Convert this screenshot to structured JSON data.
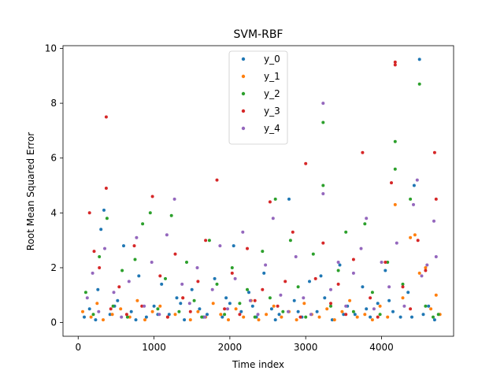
{
  "chart_data": {
    "type": "scatter",
    "title": "SVM-RBF",
    "xlabel": "Time index",
    "ylabel": "Root Mean Squared Error",
    "xlim": [
      -200,
      4950
    ],
    "ylim": [
      -0.5,
      10.1
    ],
    "xticks": [
      0,
      1000,
      2000,
      3000,
      4000
    ],
    "yticks": [
      0,
      2,
      4,
      6,
      8,
      10
    ],
    "legend_loc": "upper center",
    "grid": false,
    "series": [
      {
        "name": "y_0",
        "color": "#1f77b4",
        "points": [
          [
            80,
            0.2
          ],
          [
            150,
            0.5
          ],
          [
            230,
            0.1
          ],
          [
            300,
            3.4
          ],
          [
            340,
            4.1
          ],
          [
            420,
            0.3
          ],
          [
            520,
            0.8
          ],
          [
            600,
            2.8
          ],
          [
            700,
            0.4
          ],
          [
            800,
            1.7
          ],
          [
            900,
            0.2
          ],
          [
            1000,
            0.6
          ],
          [
            1100,
            1.4
          ],
          [
            1200,
            0.3
          ],
          [
            1300,
            0.9
          ],
          [
            1400,
            0.1
          ],
          [
            1500,
            1.2
          ],
          [
            1600,
            0.5
          ],
          [
            1700,
            0.3
          ],
          [
            1800,
            1.6
          ],
          [
            1900,
            0.2
          ],
          [
            2000,
            0.7
          ],
          [
            2050,
            2.8
          ],
          [
            2150,
            0.4
          ],
          [
            2250,
            1.1
          ],
          [
            2350,
            0.2
          ],
          [
            2450,
            1.8
          ],
          [
            2550,
            0.5
          ],
          [
            2650,
            0.3
          ],
          [
            2780,
            4.5
          ],
          [
            2850,
            0.8
          ],
          [
            2950,
            0.2
          ],
          [
            3050,
            1.5
          ],
          [
            3150,
            0.4
          ],
          [
            3250,
            0.9
          ],
          [
            3350,
            0.1
          ],
          [
            3450,
            2.1
          ],
          [
            3550,
            0.6
          ],
          [
            3650,
            0.3
          ],
          [
            3750,
            1.3
          ],
          [
            3850,
            0.2
          ],
          [
            3950,
            0.7
          ],
          [
            4050,
            1.9
          ],
          [
            4150,
            0.4
          ],
          [
            4250,
            0.2
          ],
          [
            4350,
            1.1
          ],
          [
            4430,
            5.0
          ],
          [
            4500,
            9.6
          ],
          [
            4550,
            0.3
          ],
          [
            4620,
            0.6
          ],
          [
            4700,
            0.1
          ],
          [
            260,
            1.2
          ],
          [
            480,
            0.6
          ],
          [
            760,
            0.1
          ],
          [
            1050,
            0.3
          ],
          [
            1350,
            0.7
          ],
          [
            1650,
            0.2
          ],
          [
            1950,
            0.9
          ],
          [
            2300,
            0.6
          ],
          [
            2600,
            0.1
          ],
          [
            2900,
            0.4
          ],
          [
            3200,
            1.7
          ],
          [
            3500,
            0.3
          ],
          [
            3800,
            0.5
          ],
          [
            4100,
            0.8
          ],
          [
            4400,
            0.2
          ]
        ]
      },
      {
        "name": "y_1",
        "color": "#ff7f0e",
        "points": [
          [
            60,
            0.4
          ],
          [
            170,
            0.2
          ],
          [
            250,
            0.7
          ],
          [
            330,
            0.1
          ],
          [
            450,
            0.3
          ],
          [
            560,
            0.5
          ],
          [
            680,
            0.2
          ],
          [
            780,
            0.8
          ],
          [
            880,
            0.1
          ],
          [
            980,
            0.4
          ],
          [
            1080,
            0.6
          ],
          [
            1180,
            0.2
          ],
          [
            1280,
            0.3
          ],
          [
            1380,
            0.9
          ],
          [
            1480,
            0.1
          ],
          [
            1580,
            0.4
          ],
          [
            1680,
            0.2
          ],
          [
            1780,
            0.7
          ],
          [
            1880,
            0.3
          ],
          [
            1980,
            0.1
          ],
          [
            2080,
            0.5
          ],
          [
            2180,
            0.2
          ],
          [
            2280,
            0.8
          ],
          [
            2380,
            0.1
          ],
          [
            2480,
            0.3
          ],
          [
            2580,
            0.6
          ],
          [
            2680,
            0.2
          ],
          [
            2780,
            0.4
          ],
          [
            2880,
            0.1
          ],
          [
            2980,
            0.7
          ],
          [
            3080,
            0.3
          ],
          [
            3180,
            0.2
          ],
          [
            3280,
            0.5
          ],
          [
            3380,
            0.1
          ],
          [
            3480,
            0.4
          ],
          [
            3580,
            0.8
          ],
          [
            3680,
            0.2
          ],
          [
            3780,
            0.3
          ],
          [
            3880,
            0.1
          ],
          [
            3980,
            0.6
          ],
          [
            4080,
            0.2
          ],
          [
            4180,
            4.3
          ],
          [
            4280,
            0.9
          ],
          [
            4380,
            3.1
          ],
          [
            4440,
            3.2
          ],
          [
            4500,
            1.8
          ],
          [
            4580,
            2.0
          ],
          [
            4650,
            0.5
          ],
          [
            4720,
            1.0
          ],
          [
            4770,
            0.3
          ]
        ]
      },
      {
        "name": "y_2",
        "color": "#2ca02c",
        "points": [
          [
            100,
            1.1
          ],
          [
            200,
            0.3
          ],
          [
            280,
            2.4
          ],
          [
            380,
            3.8
          ],
          [
            460,
            0.6
          ],
          [
            580,
            1.9
          ],
          [
            650,
            0.2
          ],
          [
            750,
            2.3
          ],
          [
            850,
            3.6
          ],
          [
            950,
            4.0
          ],
          [
            1050,
            0.5
          ],
          [
            1150,
            1.6
          ],
          [
            1230,
            3.9
          ],
          [
            1330,
            0.4
          ],
          [
            1430,
            2.2
          ],
          [
            1530,
            0.8
          ],
          [
            1630,
            0.2
          ],
          [
            1730,
            3.0
          ],
          [
            1830,
            1.4
          ],
          [
            1930,
            0.3
          ],
          [
            2030,
            2.0
          ],
          [
            2130,
            0.7
          ],
          [
            2230,
            1.2
          ],
          [
            2330,
            0.2
          ],
          [
            2430,
            2.6
          ],
          [
            2530,
            0.9
          ],
          [
            2600,
            4.5
          ],
          [
            2700,
            0.4
          ],
          [
            2800,
            3.0
          ],
          [
            2900,
            1.3
          ],
          [
            3000,
            0.2
          ],
          [
            3100,
            2.5
          ],
          [
            3230,
            7.3
          ],
          [
            3230,
            5.0
          ],
          [
            3330,
            0.6
          ],
          [
            3430,
            1.9
          ],
          [
            3530,
            3.3
          ],
          [
            3630,
            0.4
          ],
          [
            3780,
            3.6
          ],
          [
            3880,
            1.1
          ],
          [
            3980,
            0.3
          ],
          [
            4080,
            2.2
          ],
          [
            4180,
            6.6
          ],
          [
            4180,
            5.6
          ],
          [
            4280,
            1.4
          ],
          [
            4380,
            4.5
          ],
          [
            4500,
            8.7
          ],
          [
            4580,
            0.6
          ],
          [
            4680,
            0.2
          ],
          [
            4750,
            0.3
          ]
        ]
      },
      {
        "name": "y_3",
        "color": "#d62728",
        "points": [
          [
            150,
            4.0
          ],
          [
            210,
            2.6
          ],
          [
            280,
            2.0
          ],
          [
            370,
            7.5
          ],
          [
            370,
            4.9
          ],
          [
            430,
            0.5
          ],
          [
            540,
            1.3
          ],
          [
            640,
            0.3
          ],
          [
            740,
            2.8
          ],
          [
            840,
            0.6
          ],
          [
            980,
            4.6
          ],
          [
            1080,
            1.7
          ],
          [
            1180,
            0.2
          ],
          [
            1280,
            2.5
          ],
          [
            1380,
            0.9
          ],
          [
            1480,
            0.4
          ],
          [
            1580,
            1.5
          ],
          [
            1680,
            3.0
          ],
          [
            1830,
            5.2
          ],
          [
            1930,
            0.5
          ],
          [
            2030,
            1.8
          ],
          [
            2130,
            0.3
          ],
          [
            2230,
            2.7
          ],
          [
            2330,
            0.8
          ],
          [
            2430,
            1.2
          ],
          [
            2530,
            4.4
          ],
          [
            2630,
            0.6
          ],
          [
            2730,
            1.5
          ],
          [
            2830,
            3.3
          ],
          [
            2930,
            0.2
          ],
          [
            3000,
            5.8
          ],
          [
            3130,
            1.6
          ],
          [
            3230,
            2.9
          ],
          [
            3330,
            0.7
          ],
          [
            3430,
            1.4
          ],
          [
            3530,
            0.3
          ],
          [
            3630,
            2.3
          ],
          [
            3750,
            6.2
          ],
          [
            3850,
            0.9
          ],
          [
            3950,
            0.2
          ],
          [
            4050,
            2.2
          ],
          [
            4130,
            5.1
          ],
          [
            4180,
            9.4
          ],
          [
            4180,
            9.5
          ],
          [
            4280,
            1.3
          ],
          [
            4380,
            0.5
          ],
          [
            4480,
            3.0
          ],
          [
            4580,
            1.9
          ],
          [
            4700,
            6.2
          ],
          [
            4720,
            4.5
          ]
        ]
      },
      {
        "name": "y_4",
        "color": "#9467bd",
        "points": [
          [
            120,
            0.9
          ],
          [
            190,
            1.8
          ],
          [
            270,
            0.4
          ],
          [
            350,
            2.7
          ],
          [
            470,
            1.1
          ],
          [
            570,
            0.2
          ],
          [
            670,
            1.5
          ],
          [
            770,
            3.1
          ],
          [
            870,
            0.6
          ],
          [
            970,
            2.2
          ],
          [
            1070,
            0.3
          ],
          [
            1170,
            3.2
          ],
          [
            1270,
            4.5
          ],
          [
            1370,
            1.4
          ],
          [
            1470,
            0.7
          ],
          [
            1570,
            2.0
          ],
          [
            1670,
            0.2
          ],
          [
            1770,
            1.2
          ],
          [
            1870,
            2.8
          ],
          [
            1970,
            0.5
          ],
          [
            2070,
            1.6
          ],
          [
            2170,
            3.3
          ],
          [
            2270,
            0.8
          ],
          [
            2370,
            0.3
          ],
          [
            2470,
            2.1
          ],
          [
            2570,
            3.8
          ],
          [
            2670,
            1.0
          ],
          [
            2770,
            0.4
          ],
          [
            2870,
            2.4
          ],
          [
            2970,
            0.9
          ],
          [
            3070,
            0.3
          ],
          [
            3230,
            8.0
          ],
          [
            3230,
            4.7
          ],
          [
            3330,
            1.2
          ],
          [
            3430,
            2.2
          ],
          [
            3530,
            0.6
          ],
          [
            3630,
            1.8
          ],
          [
            3730,
            2.7
          ],
          [
            3800,
            3.8
          ],
          [
            3900,
            0.5
          ],
          [
            4000,
            2.2
          ],
          [
            4100,
            1.3
          ],
          [
            4200,
            2.9
          ],
          [
            4300,
            0.6
          ],
          [
            4420,
            4.3
          ],
          [
            4470,
            5.2
          ],
          [
            4530,
            1.7
          ],
          [
            4600,
            2.1
          ],
          [
            4690,
            3.7
          ],
          [
            4720,
            2.4
          ]
        ]
      }
    ]
  }
}
